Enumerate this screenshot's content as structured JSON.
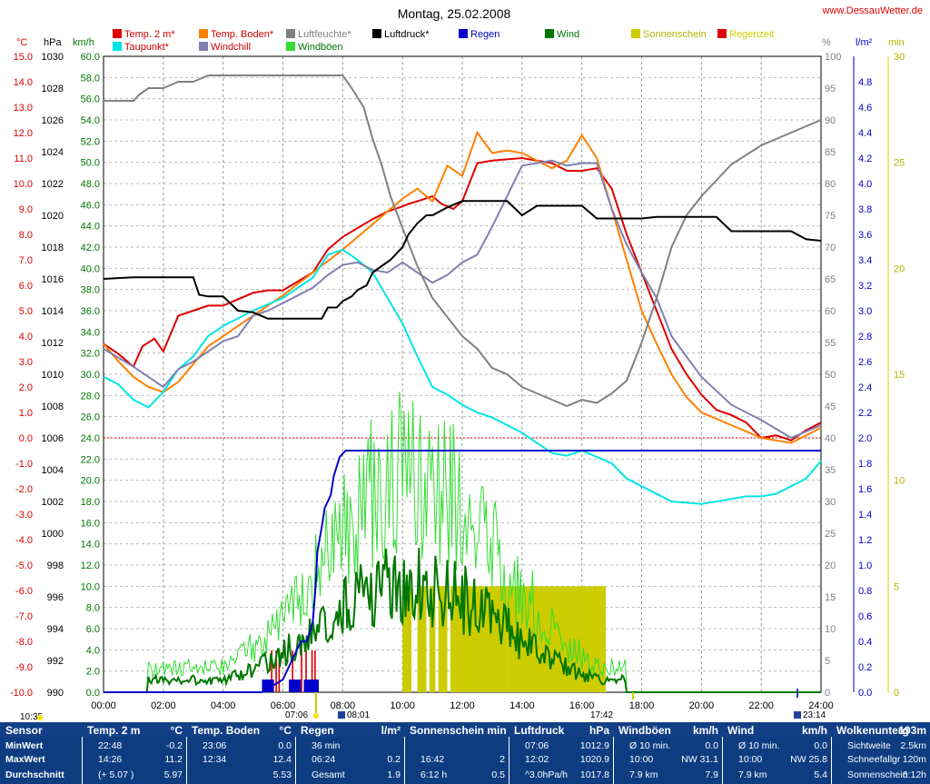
{
  "title": "Montag, 25.02.2008",
  "site": "www.DessauWetter.de",
  "legend": [
    {
      "label": "Temp. 2 m*",
      "color": "#dd0000",
      "text_color": "#cc0000"
    },
    {
      "label": "Temp. Boden*",
      "color": "#ff8000",
      "text_color": "#cc0000"
    },
    {
      "label": "Luftfeuchte*",
      "color": "#808080",
      "text_color": "#808080"
    },
    {
      "label": "Luftdruck*",
      "color": "#000000",
      "text_color": "#000000"
    },
    {
      "label": "Regen",
      "color": "#0000cc",
      "text_color": "#0000cc"
    },
    {
      "label": "Wind",
      "color": "#007700",
      "text_color": "#007700"
    },
    {
      "label": "Sonnenschein",
      "color": "#cccc00",
      "text_color": "#b3b300"
    },
    {
      "label": "Regenzeit",
      "color": "#dd0000",
      "text_color": "#cccc00"
    },
    {
      "label": "Taupunkt*",
      "color": "#00e5e5",
      "text_color": "#cc0000"
    },
    {
      "label": "Windchill",
      "color": "#8080b0",
      "text_color": "#cc0000"
    },
    {
      "label": "Windböen",
      "color": "#33dd33",
      "text_color": "#007700"
    }
  ],
  "axes": {
    "temp": {
      "unit": "°C",
      "ticks": [
        "15.0",
        "14.0",
        "13.0",
        "12.0",
        "11.0",
        "10.0",
        "9.0",
        "8.0",
        "7.0",
        "6.0",
        "5.0",
        "4.0",
        "3.0",
        "2.0",
        "1.0",
        "0.0",
        "-1.0",
        "-2.0",
        "-3.0",
        "-4.0",
        "-5.0",
        "-6.0",
        "-7.0",
        "-8.0",
        "-9.0",
        "-10.0"
      ],
      "color": "#cc0000"
    },
    "pressure": {
      "unit": "hPa",
      "ticks": [
        "1030",
        "1028",
        "1026",
        "1024",
        "1022",
        "1020",
        "1018",
        "1016",
        "1014",
        "1012",
        "1010",
        "1008",
        "1006",
        "1004",
        "1002",
        "1000",
        "998",
        "996",
        "994",
        "992",
        "990"
      ]
    },
    "wind": {
      "unit": "km/h",
      "ticks": [
        "60.0",
        "58.0",
        "56.0",
        "54.0",
        "52.0",
        "50.0",
        "48.0",
        "46.0",
        "44.0",
        "42.0",
        "40.0",
        "38.0",
        "36.0",
        "34.0",
        "32.0",
        "30.0",
        "28.0",
        "26.0",
        "24.0",
        "22.0",
        "20.0",
        "18.0",
        "16.0",
        "14.0",
        "12.0",
        "10.0",
        "8.0",
        "6.0",
        "4.0",
        "2.0",
        "0.0"
      ],
      "color": "#007700"
    },
    "humidity": {
      "unit": "%",
      "ticks": [
        "100",
        "95",
        "90",
        "85",
        "80",
        "75",
        "70",
        "65",
        "60",
        "55",
        "50",
        "45",
        "40",
        "35",
        "30",
        "25",
        "20",
        "15",
        "10",
        "5",
        "0"
      ]
    },
    "rain": {
      "unit": "l/m²",
      "ticks": [
        "4.8",
        "4.6",
        "4.4",
        "4.2",
        "4.0",
        "3.8",
        "3.6",
        "3.4",
        "3.2",
        "3.0",
        "2.8",
        "2.6",
        "2.4",
        "2.2",
        "2.0",
        "1.8",
        "1.6",
        "1.4",
        "1.2",
        "1.0",
        "0.8",
        "0.6",
        "0.4",
        "0.2",
        "0.0"
      ],
      "color": "#0000cc"
    },
    "sun": {
      "unit": "min",
      "ticks": [
        "30",
        "25",
        "20",
        "15",
        "10",
        "5",
        "0"
      ],
      "color": "#cccc00"
    },
    "x_ticks": [
      "00:00",
      "02:00",
      "04:00",
      "06:00",
      "08:00",
      "10:00",
      "12:00",
      "14:00",
      "16:00",
      "18:00",
      "20:00",
      "22:00",
      "24:00"
    ]
  },
  "time_markers": [
    "10:35",
    "07:06",
    "08:01",
    "17:42",
    "23:14"
  ],
  "chart_data": {
    "type": "line",
    "x_unit": "hours",
    "x_range": [
      0,
      24
    ],
    "series": [
      {
        "name": "Temp. 2 m*",
        "axis": "temp",
        "color": "#dd0000",
        "x": [
          0,
          0.5,
          1,
          1.3,
          1.7,
          2,
          2.5,
          3,
          3.5,
          4,
          5,
          5.5,
          6,
          7,
          7.5,
          8,
          9,
          9.5,
          10,
          10.2,
          10.5,
          11,
          11.3,
          11.7,
          12,
          12.5,
          13,
          14,
          15,
          15.5,
          16,
          16.5,
          17,
          17.5,
          18,
          18.5,
          19,
          19.5,
          20,
          20.5,
          21,
          21.5,
          22,
          22.5,
          23,
          23.5,
          24
        ],
        "y": [
          3.7,
          3.3,
          2.8,
          3.6,
          3.9,
          3.4,
          4.8,
          5.0,
          5.2,
          5.2,
          5.7,
          5.8,
          5.8,
          6.5,
          7.4,
          7.9,
          8.6,
          8.9,
          9.1,
          9.2,
          9.3,
          9.5,
          9.2,
          9.0,
          9.3,
          10.8,
          10.9,
          11.0,
          10.8,
          10.5,
          10.5,
          10.6,
          9.8,
          8.0,
          6.5,
          5.0,
          3.5,
          2.5,
          1.7,
          1.1,
          0.9,
          0.6,
          0.0,
          0.1,
          -0.1,
          0.3,
          0.6
        ]
      },
      {
        "name": "Temp. Boden*",
        "axis": "temp",
        "color": "#ff8000",
        "x": [
          0,
          0.5,
          1,
          1.5,
          2,
          2.5,
          3,
          3.5,
          4,
          5,
          6,
          7,
          8,
          9,
          9.5,
          10,
          10.5,
          11,
          11.5,
          12,
          12.5,
          13,
          13.5,
          14,
          15,
          15.5,
          16,
          16.5,
          17,
          17.5,
          18,
          18.5,
          19,
          19.5,
          20,
          21,
          22,
          23,
          24
        ],
        "y": [
          3.7,
          3.0,
          2.4,
          2.0,
          1.8,
          2.2,
          2.9,
          3.6,
          4.0,
          4.8,
          5.6,
          6.5,
          7.4,
          8.4,
          8.9,
          9.4,
          9.8,
          9.3,
          10.7,
          10.3,
          12.0,
          11.2,
          11.3,
          11.2,
          10.6,
          10.9,
          11.9,
          11.0,
          9.0,
          7.0,
          5.0,
          3.7,
          2.5,
          1.6,
          1.0,
          0.5,
          0.0,
          -0.2,
          0.4
        ]
      },
      {
        "name": "Taupunkt*",
        "axis": "temp",
        "color": "#00e5e5",
        "x": [
          0,
          0.5,
          1,
          1.5,
          2,
          2.5,
          3,
          3.5,
          4,
          5,
          6,
          7,
          7.5,
          8,
          8.5,
          9,
          9.5,
          10,
          10.5,
          11,
          11.5,
          12,
          12.5,
          13,
          14,
          15,
          15.5,
          16,
          17,
          17.5,
          18,
          19,
          20,
          21,
          21.5,
          22,
          22.5,
          23,
          23.5,
          24
        ],
        "y": [
          2.4,
          2.1,
          1.5,
          1.2,
          1.8,
          2.7,
          3.2,
          4.0,
          4.4,
          5.0,
          5.5,
          6.3,
          7.2,
          7.4,
          7.0,
          6.5,
          5.5,
          4.5,
          3.2,
          2.0,
          1.7,
          1.3,
          1.0,
          0.8,
          0.2,
          -0.6,
          -0.7,
          -0.5,
          -1.0,
          -1.6,
          -1.9,
          -2.5,
          -2.6,
          -2.4,
          -2.3,
          -2.3,
          -2.2,
          -1.9,
          -1.6,
          -0.9
        ]
      },
      {
        "name": "Windchill",
        "axis": "temp",
        "color": "#8080b0",
        "x": [
          0,
          1,
          2,
          2.5,
          3,
          3.5,
          4,
          4.5,
          5,
          5.5,
          6,
          6.5,
          7,
          7.5,
          8,
          8.5,
          9,
          9.5,
          10,
          10.5,
          11,
          11.5,
          12,
          12.5,
          13,
          14,
          15,
          15.5,
          16,
          16.5,
          17,
          17.5,
          18,
          18.5,
          19,
          20,
          21,
          22,
          23,
          24
        ],
        "y": [
          3.5,
          2.8,
          2.0,
          2.7,
          3.0,
          3.4,
          3.8,
          4.0,
          4.8,
          5.0,
          5.3,
          5.6,
          5.9,
          6.4,
          6.8,
          6.9,
          6.6,
          6.5,
          6.9,
          6.5,
          6.1,
          6.4,
          6.9,
          7.2,
          8.3,
          10.7,
          10.9,
          10.7,
          10.8,
          10.8,
          9.0,
          7.6,
          6.5,
          5.5,
          4.0,
          2.4,
          1.3,
          0.7,
          0.0,
          0.5
        ]
      },
      {
        "name": "Luftfeuchte*",
        "axis": "humidity",
        "color": "#808080",
        "x": [
          0,
          0.5,
          1,
          1.2,
          1.5,
          2,
          2.5,
          3,
          3.5,
          4,
          5,
          6,
          7,
          8,
          8.3,
          8.7,
          9,
          9.3,
          9.6,
          10,
          10.5,
          11,
          11.5,
          12,
          12.5,
          13,
          13.5,
          14,
          14.5,
          15,
          15.5,
          16,
          16.5,
          17,
          17.5,
          18,
          18.5,
          19,
          19.5,
          20,
          21,
          22,
          22.5,
          23,
          23.5,
          24
        ],
        "y": [
          93,
          93,
          93,
          94,
          95,
          95,
          96,
          96,
          97,
          97,
          97,
          97,
          97,
          97,
          95,
          92,
          87,
          83,
          78,
          73,
          67,
          62,
          59,
          56,
          54,
          51,
          50,
          48,
          47,
          46,
          45,
          46,
          45.5,
          47,
          49,
          55,
          62,
          70,
          75,
          78,
          83,
          86,
          87,
          88,
          89,
          90
        ]
      },
      {
        "name": "Luftdruck*",
        "axis": "pressure",
        "color": "#000000",
        "x": [
          0,
          1,
          1.5,
          2,
          2.5,
          3,
          3.2,
          3.5,
          4,
          4.5,
          5,
          5.5,
          6,
          6.5,
          7,
          7.3,
          7.5,
          7.8,
          8,
          8.3,
          8.5,
          8.8,
          9,
          9.3,
          9.6,
          10,
          10.2,
          10.5,
          10.8,
          11,
          11.5,
          12,
          12.5,
          13,
          13.5,
          14,
          14.5,
          15,
          15.5,
          16,
          16.5,
          17,
          17.5,
          18,
          18.5,
          19,
          19.5,
          20,
          20.5,
          21,
          21.5,
          22,
          22.5,
          23,
          23.5,
          24
        ],
        "y": [
          1016.0,
          1016.1,
          1016.1,
          1016.1,
          1016.1,
          1016.1,
          1015.0,
          1014.9,
          1014.9,
          1014.0,
          1013.9,
          1013.5,
          1013.5,
          1013.5,
          1013.5,
          1013.5,
          1014.2,
          1014.2,
          1014.6,
          1014.9,
          1015.3,
          1015.6,
          1016.4,
          1016.8,
          1017.2,
          1018.0,
          1018.8,
          1019.5,
          1020.0,
          1020.0,
          1020.5,
          1020.9,
          1020.9,
          1020.9,
          1020.9,
          1020.0,
          1020.6,
          1020.6,
          1020.6,
          1020.6,
          1019.8,
          1019.8,
          1019.8,
          1019.8,
          1019.9,
          1019.9,
          1019.9,
          1019.9,
          1019.9,
          1019.0,
          1019.0,
          1019.0,
          1019.0,
          1019.0,
          1018.5,
          1018.4
        ]
      },
      {
        "name": "Regen",
        "axis": "rain",
        "color": "#0000cc",
        "x": [
          0,
          5.3,
          6,
          6.2,
          6.4,
          6.6,
          6.8,
          7.0,
          7.1,
          7.15,
          7.3,
          7.4,
          7.6,
          7.7,
          7.9,
          8.1,
          24
        ],
        "y": [
          0,
          0,
          0.1,
          0.2,
          0.3,
          0.4,
          0.4,
          0.55,
          0.85,
          1.1,
          1.3,
          1.45,
          1.55,
          1.7,
          1.85,
          1.9,
          1.9
        ]
      }
    ],
    "wind": {
      "name": "Wind",
      "axis": "wind",
      "color": "#007700",
      "start": 1.5,
      "end": 17.5,
      "step": 0.1,
      "values_description": "10-min mean wind speed in km/h"
    },
    "gusts": {
      "name": "Windböen",
      "axis": "wind",
      "color": "#33dd33"
    },
    "sunshine": {
      "name": "Sonnenschein",
      "axis": "sun",
      "color": "#cccc00",
      "value_min": 5,
      "intervals": [
        [
          10,
          10.3
        ],
        [
          10.5,
          10.8
        ],
        [
          10.9,
          11.1
        ],
        [
          11.2,
          11.5
        ],
        [
          11.6,
          12.0
        ],
        [
          12.0,
          13.5
        ],
        [
          13.5,
          16.8
        ]
      ]
    },
    "rain_time": {
      "name": "Regenzeit",
      "color": "#dd0000",
      "intervals": [
        [
          5.6,
          5.65
        ],
        [
          5.75,
          5.8
        ],
        [
          5.85,
          5.9
        ],
        [
          6.3,
          6.35
        ],
        [
          6.6,
          6.65
        ],
        [
          6.75,
          6.8
        ],
        [
          6.95,
          7.0
        ],
        [
          7.05,
          7.1
        ]
      ]
    },
    "rain_bars": {
      "color": "#0000cc",
      "intervals": [
        [
          5.3,
          5.7
        ],
        [
          6.2,
          6.6
        ],
        [
          6.7,
          7.2
        ]
      ]
    }
  },
  "table": {
    "columns": [
      {
        "header": "Sensor",
        "unit": "",
        "rows": [
          [
            "MinWert",
            ""
          ],
          [
            "MaxWert",
            ""
          ],
          [
            "Durchschnitt",
            ""
          ]
        ]
      },
      {
        "header": "Temp. 2 m",
        "unit": "°C",
        "rows": [
          [
            "22:48",
            "-0.2"
          ],
          [
            "14:26",
            "11.2"
          ],
          [
            "(+ 5.07 )",
            "5.97"
          ]
        ]
      },
      {
        "header": "Temp. Boden",
        "unit": "°C",
        "rows": [
          [
            "23:06",
            "0.0"
          ],
          [
            "12:34",
            "12.4"
          ],
          [
            "",
            "5.53"
          ]
        ]
      },
      {
        "header": "Regen",
        "unit": "l/m²",
        "rows": [
          [
            "36 min",
            ""
          ],
          [
            "06:24",
            "0.2"
          ],
          [
            "Gesamt",
            "1.9"
          ]
        ]
      },
      {
        "header": "Sonnenschein min",
        "unit": "",
        "rows": [
          [
            "",
            ""
          ],
          [
            "16:42",
            "2"
          ],
          [
            "6:12 h",
            "0.5"
          ]
        ]
      },
      {
        "header": "Luftdruck",
        "unit": "hPa",
        "rows": [
          [
            "07:06",
            "1012.9"
          ],
          [
            "12:02",
            "1020.9"
          ],
          [
            "^3.0hPa/h",
            "1017.8"
          ]
        ]
      },
      {
        "header": "Windböen",
        "unit": "km/h",
        "rows": [
          [
            "Ø 10 min.",
            "0.0"
          ],
          [
            "10:00",
            "NW 31.1"
          ],
          [
            "7.9 km",
            "7.9"
          ]
        ]
      },
      {
        "header": "Wind",
        "unit": "km/h",
        "rows": [
          [
            "Ø 10 min.",
            "0.0"
          ],
          [
            "10:00",
            "NW 25.8"
          ],
          [
            "7.9 km",
            "5.4"
          ]
        ]
      },
      {
        "header": "Wolkenunterg",
        "unit": "193m",
        "rows": [
          [
            "Sichtweite",
            "2.5km"
          ],
          [
            "Schneefallgr",
            "120m"
          ],
          [
            "Sonnenschein",
            "6:12h"
          ]
        ]
      }
    ]
  }
}
